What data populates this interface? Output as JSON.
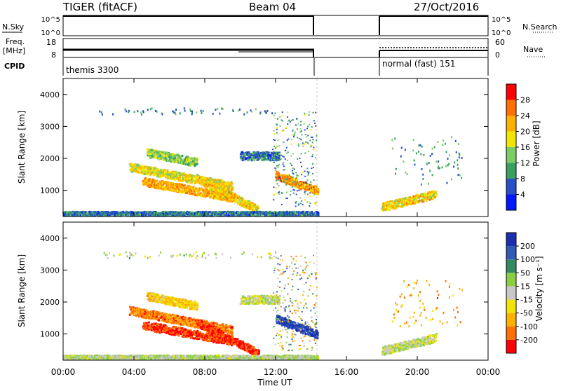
{
  "header": {
    "title": "TIGER (fitACF)",
    "beam": "Beam 04",
    "date": "27/Oct/2016"
  },
  "strips": {
    "nsky_label": "N.Sky",
    "nsearch_label": "N.Search",
    "nsky_ticks": [
      "10^5",
      "10^0"
    ],
    "freq_label_1": "Freq.",
    "freq_label_2": "[MHz]",
    "freq_ticks": [
      "18",
      "8"
    ],
    "nave_label": "Nave",
    "nave_ticks": [
      "60",
      "0"
    ],
    "cpid_label": "CPID",
    "cpid_1": "themis 3300",
    "cpid_2": "normal (fast) 151"
  },
  "power_colorbar": {
    "label": "Power [dB]",
    "ticks": [
      "4",
      "8",
      "12",
      "16",
      "20",
      "24",
      "28"
    ],
    "colors": [
      "#0018ff",
      "#2a4fc8",
      "#39a060",
      "#7ccc66",
      "#f2e500",
      "#ffb000",
      "#ff7000",
      "#ff0000"
    ]
  },
  "velocity_colorbar": {
    "label": "Velocity [m s⁻¹]",
    "ticks": [
      "200",
      "100",
      "50",
      "15",
      "-15",
      "-50",
      "-100",
      "-200"
    ],
    "colors": [
      "#1a2fb0",
      "#2f5ab8",
      "#338a60",
      "#88d040",
      "#c8c8c8",
      "#f2e500",
      "#ffb000",
      "#ff7000",
      "#ff0000"
    ]
  },
  "chart_data": [
    {
      "type": "heatmap",
      "title": "TIGER (fitACF) Beam 04 27/Oct/2016",
      "xlabel": "",
      "ylabel": "Slant Range [km]",
      "colorbar_label": "Power [dB]",
      "xlim": [
        "00:00",
        "24:00"
      ],
      "ylim": [
        180,
        4500
      ],
      "x_ticks": [
        "00:00",
        "04:00",
        "08:00",
        "12:00",
        "16:00",
        "20:00",
        "00:00"
      ],
      "y_ticks": [
        1000,
        2000,
        3000,
        4000
      ],
      "data_gap": [
        "14:20",
        "18:00"
      ],
      "features": [
        {
          "name": "band-upper",
          "x_start": "03:45",
          "x_end": "09:30",
          "y_start": 1750,
          "y_end": 1150,
          "value_db": 18
        },
        {
          "name": "band-lower",
          "x_start": "04:30",
          "x_end": "09:30",
          "y_start": 1300,
          "y_end": 800,
          "value_db": 22
        },
        {
          "name": "arc-2200",
          "x_start": "04:45",
          "x_end": "07:30",
          "y_start": 2200,
          "y_end": 1900,
          "value_db": 14
        },
        {
          "name": "streak-2000",
          "x_start": "10:00",
          "x_end": "12:10",
          "y_start": 2100,
          "y_end": 2100,
          "value_db": 8
        },
        {
          "name": "descending-tail",
          "x_start": "07:30",
          "x_end": "11:00",
          "y_start": 1400,
          "y_end": 400,
          "value_db": 20
        },
        {
          "name": "near-range",
          "x_start": "00:00",
          "x_end": "14:20",
          "y_start": 300,
          "y_end": 300,
          "value_db": 8
        },
        {
          "name": "cluster-13h",
          "x_start": "12:00",
          "x_end": "14:20",
          "y_start": 1500,
          "y_end": 1000,
          "value_db": 24
        },
        {
          "name": "post-gap-band",
          "x_start": "18:00",
          "x_end": "21:00",
          "y_start": 500,
          "y_end": 900,
          "value_db": 20
        }
      ]
    },
    {
      "type": "heatmap",
      "title": "",
      "xlabel": "Time UT",
      "ylabel": "Slant Range [km]",
      "colorbar_label": "Velocity [m s⁻¹]",
      "xlim": [
        "00:00",
        "24:00"
      ],
      "ylim": [
        180,
        4500
      ],
      "x_ticks": [
        "00:00",
        "04:00",
        "08:00",
        "12:00",
        "16:00",
        "20:00",
        "00:00"
      ],
      "y_ticks": [
        1000,
        2000,
        3000,
        4000
      ],
      "data_gap": [
        "14:20",
        "18:00"
      ],
      "features": [
        {
          "name": "band-upper",
          "x_start": "03:45",
          "x_end": "09:30",
          "y_start": 1750,
          "y_end": 1150,
          "value_ms": -150
        },
        {
          "name": "band-lower",
          "x_start": "04:30",
          "x_end": "09:30",
          "y_start": 1300,
          "y_end": 800,
          "value_ms": -200
        },
        {
          "name": "arc-2200",
          "x_start": "04:45",
          "x_end": "07:30",
          "y_start": 2200,
          "y_end": 1900,
          "value_ms": -80
        },
        {
          "name": "streak-2000",
          "x_start": "10:00",
          "x_end": "12:10",
          "y_start": 2100,
          "y_end": 2100,
          "value_ms": 0
        },
        {
          "name": "descending-tail",
          "x_start": "07:30",
          "x_end": "11:00",
          "y_start": 1400,
          "y_end": 400,
          "value_ms": -200
        },
        {
          "name": "near-range",
          "x_start": "00:00",
          "x_end": "14:20",
          "y_start": 300,
          "y_end": 300,
          "value_ms": 20
        },
        {
          "name": "cluster-13h",
          "x_start": "12:00",
          "x_end": "14:20",
          "y_start": 1500,
          "y_end": 1000,
          "value_ms": 200
        },
        {
          "name": "post-gap-band",
          "x_start": "18:00",
          "x_end": "21:00",
          "y_start": 500,
          "y_end": 900,
          "value_ms": 0
        }
      ]
    }
  ]
}
